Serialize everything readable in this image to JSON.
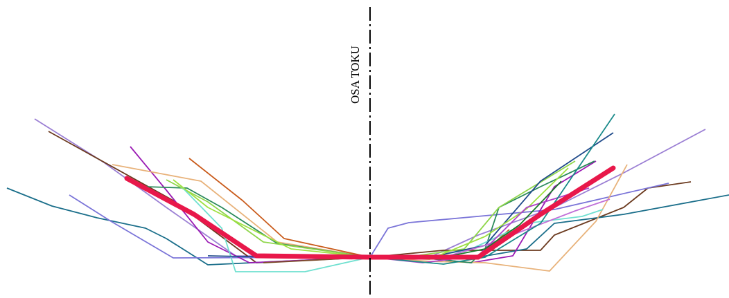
{
  "axis": {
    "label": "OSA TOKU",
    "color": "#000000"
  },
  "profiles": [
    {
      "color": "#9b7fd4"
    },
    {
      "color": "#6b3a1f"
    },
    {
      "color": "#1a6e8a"
    },
    {
      "color": "#7a74d8"
    },
    {
      "color": "#9a1ab3"
    },
    {
      "color": "#e8b27a"
    },
    {
      "color": "#c95a1a"
    },
    {
      "color": "#2a8a5a"
    },
    {
      "color": "#8fd64a"
    },
    {
      "color": "#6fe0d0"
    },
    {
      "color": "#1f4a8a"
    },
    {
      "color": "#9fe040"
    },
    {
      "color": "#c06fd8"
    },
    {
      "color": "#b040c8"
    },
    {
      "color": "#1a7a2a"
    },
    {
      "color": "#7b4a2a"
    },
    {
      "color": "#1a8a8a"
    }
  ],
  "mean_profile": {
    "color": "#e8184a"
  }
}
